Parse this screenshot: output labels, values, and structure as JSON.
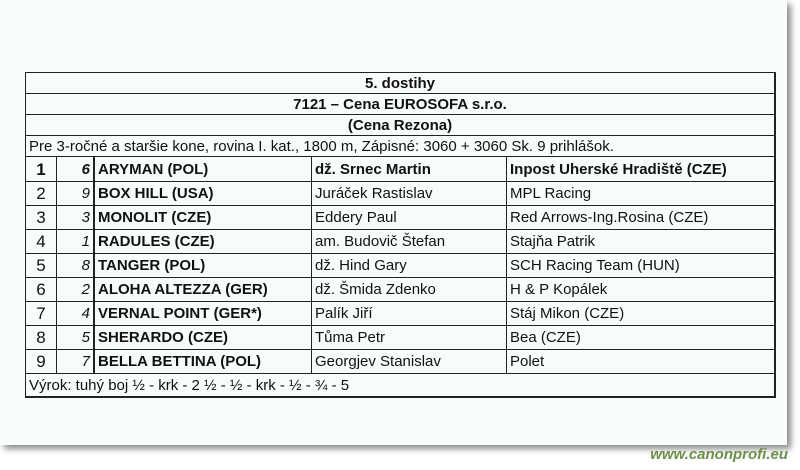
{
  "race": {
    "title": "5. dostihy",
    "name": "7121 – Cena EUROSOFA s.r.o.",
    "subtitle": "(Cena Rezona)",
    "conditions": "Pre 3-ročné a staršie kone, rovina I. kat., 1800 m, Zápisné: 3060 + 3060 Sk. 9 prihlášok."
  },
  "results": [
    {
      "place": "1",
      "number": "6",
      "horse": "ARYMAN (POL)",
      "jockey": "dž. Srnec Martin",
      "owner": "Inpost Uherské Hradiště (CZE)"
    },
    {
      "place": "2",
      "number": "9",
      "horse": "BOX HILL (USA)",
      "jockey": "Juráček Rastislav",
      "owner": "MPL Racing"
    },
    {
      "place": "3",
      "number": "3",
      "horse": "MONOLIT (CZE)",
      "jockey": "Eddery Paul",
      "owner": "Red Arrows-Ing.Rosina (CZE)"
    },
    {
      "place": "4",
      "number": "1",
      "horse": "RADULES (CZE)",
      "jockey": "am. Budovič Štefan",
      "owner": "Stajňa Patrik"
    },
    {
      "place": "5",
      "number": "8",
      "horse": "TANGER (POL)",
      "jockey": "dž. Hind Gary",
      "owner": "SCH Racing Team (HUN)"
    },
    {
      "place": "6",
      "number": "2",
      "horse": "ALOHA ALTEZZA (GER)",
      "jockey": "dž. Šmida Zdenko",
      "owner": "H & P Kopálek"
    },
    {
      "place": "7",
      "number": "4",
      "horse": "VERNAL POINT (GER*)",
      "jockey": "Palík Jiří",
      "owner": "Stáj Mikon (CZE)"
    },
    {
      "place": "8",
      "number": "5",
      "horse": "SHERARDO (CZE)",
      "jockey": "Tůma Petr",
      "owner": "Bea (CZE)"
    },
    {
      "place": "9",
      "number": "7",
      "horse": "BELLA BETTINA (POL)",
      "jockey": "Georgjev Stanislav",
      "owner": "Polet"
    }
  ],
  "verdict": "Výrok: tuhý boj ½ - krk - 2 ½ - ½ - krk - ½ - ¾ - 5",
  "watermark": "www.canonprofi.eu",
  "colors": {
    "watermark": "#6c8f4a",
    "background": "#f8fcfd"
  }
}
